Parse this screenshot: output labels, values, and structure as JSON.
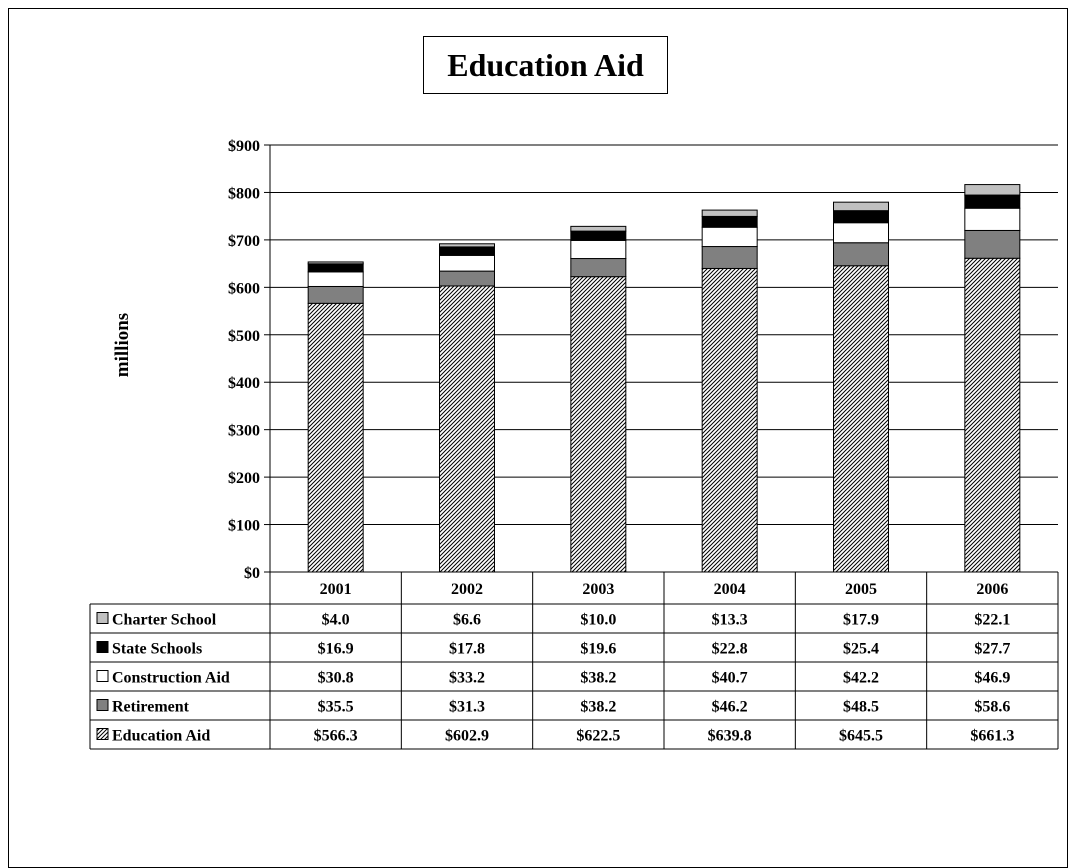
{
  "chart_data": {
    "type": "bar",
    "stacked": true,
    "title": "Education Aid",
    "xlabel": "",
    "ylabel": "millions",
    "ylim": [
      0,
      900
    ],
    "yticks": [
      0,
      100,
      200,
      300,
      400,
      500,
      600,
      700,
      800,
      900
    ],
    "ytick_labels": [
      "$0",
      "$100",
      "$200",
      "$300",
      "$400",
      "$500",
      "$600",
      "$700",
      "$800",
      "$900"
    ],
    "grid": true,
    "legend": "data-table",
    "categories": [
      "2001",
      "2002",
      "2003",
      "2004",
      "2005",
      "2006"
    ],
    "series": [
      {
        "name": "Education Aid",
        "fill": "hatch",
        "color": "#ffffff",
        "values": [
          566.3,
          602.9,
          622.5,
          639.8,
          645.5,
          661.3
        ],
        "labels": [
          "$566.3",
          "$602.9",
          "$622.5",
          "$639.8",
          "$645.5",
          "$661.3"
        ]
      },
      {
        "name": "Retirement",
        "fill": "solid",
        "color": "#808080",
        "values": [
          35.5,
          31.3,
          38.2,
          46.2,
          48.5,
          58.6
        ],
        "labels": [
          "$35.5",
          "$31.3",
          "$38.2",
          "$46.2",
          "$48.5",
          "$58.6"
        ]
      },
      {
        "name": "Construction Aid",
        "fill": "solid",
        "color": "#ffffff",
        "values": [
          30.8,
          33.2,
          38.2,
          40.7,
          42.2,
          46.9
        ],
        "labels": [
          "$30.8",
          "$33.2",
          "$38.2",
          "$40.7",
          "$42.2",
          "$46.9"
        ]
      },
      {
        "name": "State Schools",
        "fill": "solid",
        "color": "#000000",
        "values": [
          16.9,
          17.8,
          19.6,
          22.8,
          25.4,
          27.7
        ],
        "labels": [
          "$16.9",
          "$17.8",
          "$19.6",
          "$22.8",
          "$25.4",
          "$27.7"
        ]
      },
      {
        "name": "Charter School",
        "fill": "solid",
        "color": "#c0c0c0",
        "values": [
          4.0,
          6.6,
          10.0,
          13.3,
          17.9,
          22.1
        ],
        "labels": [
          "$4.0",
          "$6.6",
          "$10.0",
          "$13.3",
          "$17.9",
          "$22.1"
        ]
      }
    ],
    "table_row_order": [
      "Charter School",
      "State Schools",
      "Construction Aid",
      "Retirement",
      "Education Aid"
    ]
  }
}
